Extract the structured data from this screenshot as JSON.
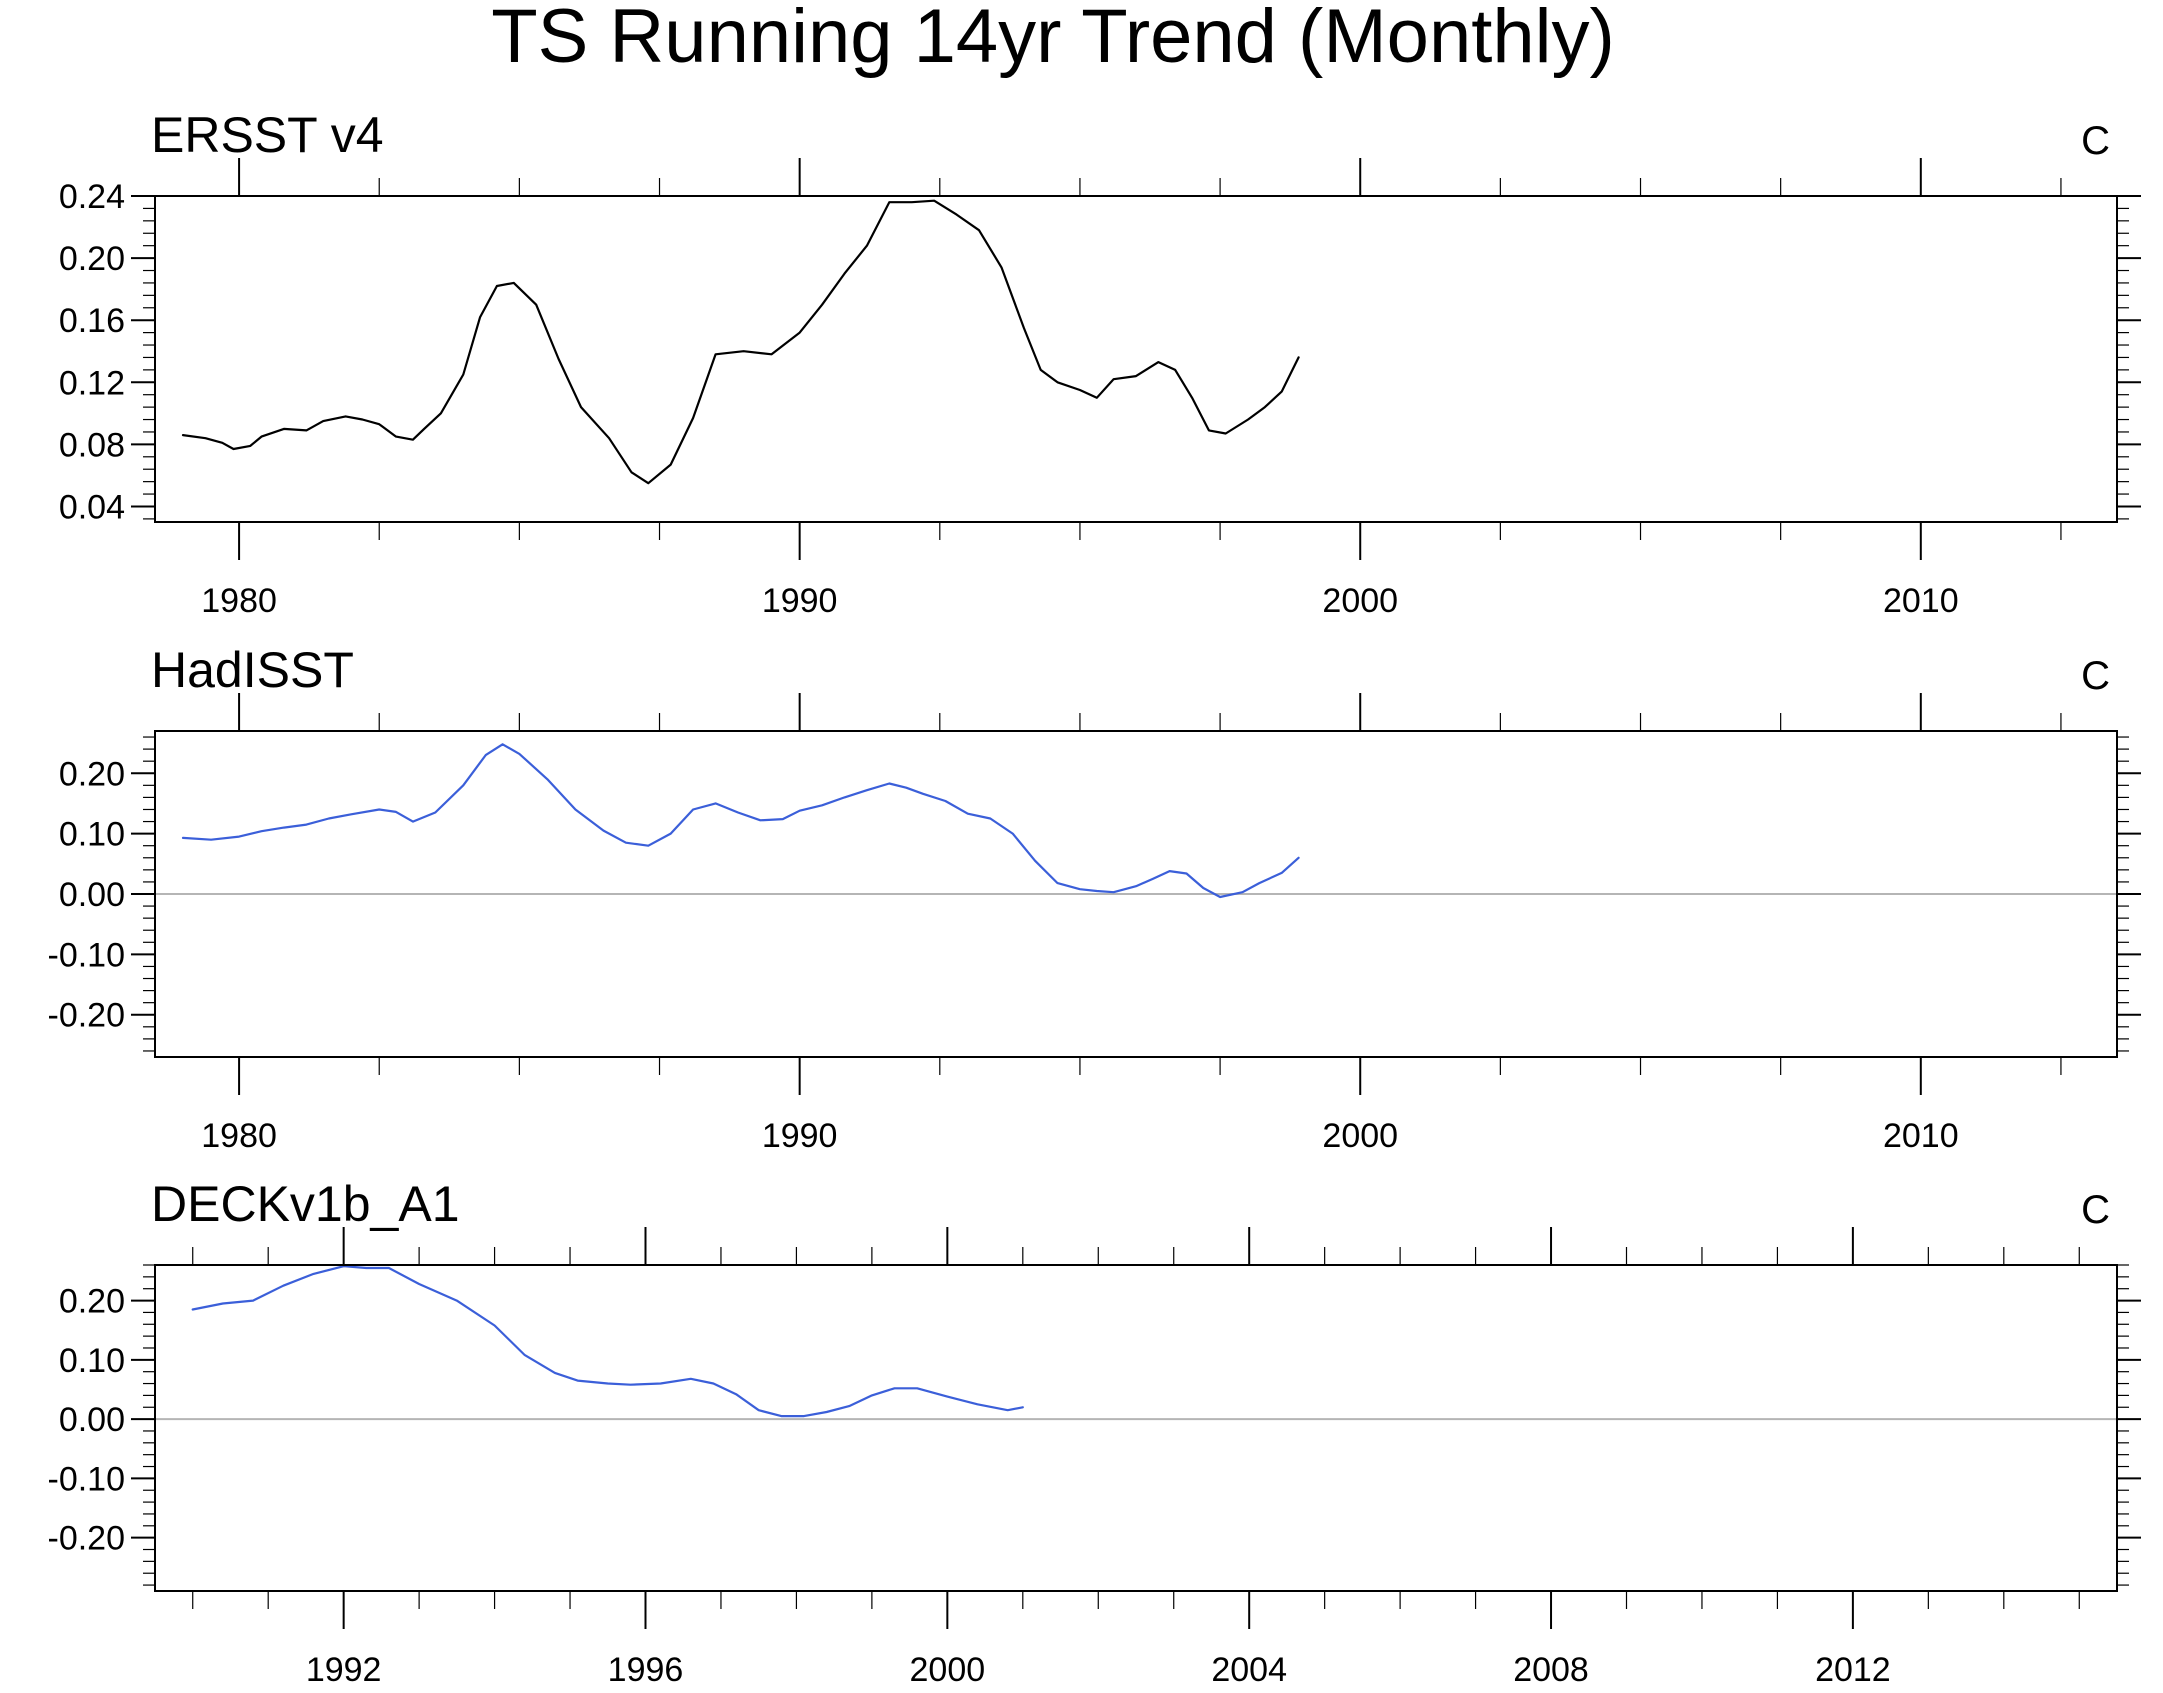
{
  "title": "TS Running 14yr Trend (Monthly)",
  "chart_data": [
    {
      "type": "line",
      "title": "ERSST v4",
      "unit": "C",
      "color": "#000000",
      "xlim": [
        1978.5,
        2013.5
      ],
      "ylim": [
        0.03,
        0.24
      ],
      "yticks": [
        0.04,
        0.08,
        0.12,
        0.16,
        0.2,
        0.24
      ],
      "ytick_labels": [
        "0.04",
        "0.08",
        "0.12",
        "0.16",
        "0.20",
        "0.24"
      ],
      "xticks": [
        1980,
        1990,
        2000,
        2010
      ],
      "xtick_labels": [
        "1980",
        "1990",
        "2000",
        "2010"
      ],
      "zero_line": false,
      "series": [
        {
          "x": [
            1979.0,
            1979.4,
            1979.7,
            1979.9,
            1980.2,
            1980.4,
            1980.8,
            1981.2,
            1981.5,
            1981.9,
            1982.2,
            1982.5,
            1982.8,
            1983.1,
            1983.3,
            1983.6,
            1984.0,
            1984.3,
            1984.6,
            1984.9,
            1985.3,
            1985.7,
            1986.1,
            1986.6,
            1987.0,
            1987.3,
            1987.7,
            1988.1,
            1988.5,
            1989.0,
            1989.5,
            1990.0,
            1990.4,
            1990.8,
            1991.2,
            1991.6,
            1992.0,
            1992.4,
            1992.8,
            1993.2,
            1993.6,
            1994.0,
            1994.3,
            1994.6,
            1995.0,
            1995.3,
            1995.6,
            1996.0,
            1996.4,
            1996.7,
            1997.0,
            1997.3,
            1997.6,
            1998.0,
            1998.3,
            1998.6,
            1998.9
          ],
          "y": [
            0.086,
            0.084,
            0.081,
            0.077,
            0.079,
            0.085,
            0.09,
            0.089,
            0.095,
            0.098,
            0.096,
            0.093,
            0.085,
            0.083,
            0.09,
            0.1,
            0.125,
            0.162,
            0.182,
            0.184,
            0.17,
            0.135,
            0.104,
            0.084,
            0.062,
            0.055,
            0.067,
            0.097,
            0.138,
            0.14,
            0.138,
            0.152,
            0.17,
            0.19,
            0.208,
            0.236,
            0.236,
            0.237,
            0.228,
            0.218,
            0.194,
            0.155,
            0.128,
            0.12,
            0.115,
            0.11,
            0.122,
            0.124,
            0.133,
            0.128,
            0.11,
            0.089,
            0.087,
            0.096,
            0.104,
            0.114,
            0.136
          ]
        }
      ]
    },
    {
      "type": "line",
      "title": "HadISST",
      "unit": "C",
      "color": "#3b5fd9",
      "xlim": [
        1978.5,
        2013.5
      ],
      "ylim": [
        -0.27,
        0.27
      ],
      "yticks": [
        -0.2,
        -0.1,
        0.0,
        0.1,
        0.2
      ],
      "ytick_labels": [
        "-0.20",
        "-0.10",
        "0.00",
        "0.10",
        "0.20"
      ],
      "xticks": [
        1980,
        1990,
        2000,
        2010
      ],
      "xtick_labels": [
        "1980",
        "1990",
        "2000",
        "2010"
      ],
      "zero_line": true,
      "series": [
        {
          "x": [
            1979.0,
            1979.5,
            1980.0,
            1980.4,
            1980.8,
            1981.2,
            1981.6,
            1982.0,
            1982.5,
            1982.8,
            1983.1,
            1983.5,
            1984.0,
            1984.4,
            1984.7,
            1985.0,
            1985.5,
            1986.0,
            1986.5,
            1986.9,
            1987.3,
            1987.7,
            1988.1,
            1988.5,
            1988.9,
            1989.3,
            1989.7,
            1990.0,
            1990.4,
            1990.8,
            1991.2,
            1991.6,
            1991.9,
            1992.2,
            1992.6,
            1993.0,
            1993.4,
            1993.8,
            1994.2,
            1994.6,
            1995.0,
            1995.3,
            1995.6,
            1996.0,
            1996.3,
            1996.6,
            1996.9,
            1997.2,
            1997.5,
            1997.9,
            1998.2,
            1998.6,
            1998.9
          ],
          "y": [
            0.093,
            0.09,
            0.095,
            0.104,
            0.11,
            0.115,
            0.125,
            0.132,
            0.14,
            0.136,
            0.12,
            0.135,
            0.18,
            0.23,
            0.248,
            0.232,
            0.19,
            0.14,
            0.105,
            0.085,
            0.08,
            0.1,
            0.14,
            0.15,
            0.135,
            0.122,
            0.124,
            0.138,
            0.147,
            0.16,
            0.172,
            0.183,
            0.176,
            0.166,
            0.154,
            0.133,
            0.125,
            0.1,
            0.055,
            0.018,
            0.008,
            0.005,
            0.003,
            0.013,
            0.025,
            0.038,
            0.034,
            0.01,
            -0.005,
            0.003,
            0.018,
            0.035,
            0.06
          ]
        }
      ]
    },
    {
      "type": "line",
      "title": "DECKv1b_A1",
      "unit": "C",
      "color": "#3b5fd9",
      "xlim": [
        1989.5,
        2015.5
      ],
      "ylim": [
        -0.29,
        0.26
      ],
      "yticks": [
        -0.2,
        -0.1,
        0.0,
        0.1,
        0.2
      ],
      "ytick_labels": [
        "-0.20",
        "-0.10",
        "0.00",
        "0.10",
        "0.20"
      ],
      "xticks": [
        1992,
        1996,
        2000,
        2004,
        2008,
        2012
      ],
      "xtick_labels": [
        "1992",
        "1996",
        "2000",
        "2004",
        "2008",
        "2012"
      ],
      "zero_line": true,
      "series": [
        {
          "x": [
            1990.0,
            1990.4,
            1990.8,
            1991.2,
            1991.6,
            1992.0,
            1992.3,
            1992.6,
            1993.0,
            1993.5,
            1994.0,
            1994.4,
            1994.8,
            1995.1,
            1995.5,
            1995.8,
            1996.2,
            1996.6,
            1996.9,
            1997.2,
            1997.5,
            1997.8,
            1998.1,
            1998.4,
            1998.7,
            1999.0,
            1999.3,
            1999.6,
            2000.0,
            2000.4,
            2000.8,
            2001.0
          ],
          "y": [
            0.185,
            0.195,
            0.2,
            0.225,
            0.245,
            0.258,
            0.255,
            0.255,
            0.228,
            0.2,
            0.158,
            0.108,
            0.078,
            0.065,
            0.06,
            0.058,
            0.06,
            0.068,
            0.06,
            0.042,
            0.015,
            0.005,
            0.005,
            0.012,
            0.022,
            0.04,
            0.052,
            0.052,
            0.038,
            0.025,
            0.015,
            0.02
          ]
        }
      ]
    }
  ]
}
